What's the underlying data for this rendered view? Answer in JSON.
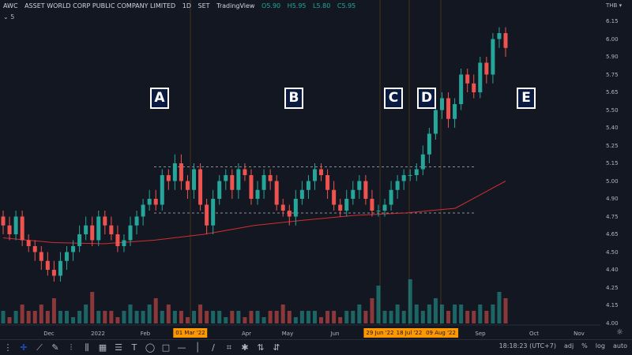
{
  "header": {
    "symbol": "AWC",
    "name": "ASSET WORLD CORP PUBLIC COMPANY LIMITED",
    "interval": "1D",
    "exchange": "SET",
    "source": "TradingView",
    "open": "O5.90",
    "high": "H5.95",
    "low": "L5.80",
    "close": "C5.95",
    "collapse": "5"
  },
  "price_axis": {
    "currency": "THB",
    "labels": [
      "6.15",
      "6.00",
      "5.90",
      "5.75",
      "5.65",
      "5.50",
      "5.40",
      "5.25",
      "5.15",
      "5.00",
      "4.90",
      "4.75",
      "4.65",
      "4.50",
      "4.40",
      "4.25",
      "4.15",
      "4.00"
    ]
  },
  "time_axis": {
    "labels": [
      "Dec",
      "2022",
      "Feb",
      "Apr",
      "May",
      "Jun",
      "Sep",
      "Oct",
      "Nov"
    ],
    "highlights": [
      "01 Mar '22",
      "29 Jun '22",
      "18 Jul '22",
      "09 Aug '22"
    ]
  },
  "annotations": [
    "A",
    "B",
    "C",
    "D",
    "E"
  ],
  "colors": {
    "up": "#26a69a",
    "down": "#ef5350",
    "ma": "#d32f2f",
    "highlight": "#ff9800",
    "background": "#131722"
  },
  "chart_data": {
    "type": "candlestick",
    "closes": [
      4.7,
      4.65,
      4.75,
      4.6,
      4.55,
      4.5,
      4.45,
      4.4,
      4.35,
      4.45,
      4.5,
      4.55,
      4.65,
      4.7,
      4.6,
      4.75,
      4.7,
      4.65,
      4.55,
      4.6,
      4.7,
      4.75,
      4.85,
      4.9,
      4.85,
      5.05,
      5.0,
      5.15,
      5.0,
      4.95,
      5.1,
      4.85,
      4.7,
      4.9,
      5.0,
      5.05,
      4.95,
      5.1,
      5.05,
      4.9,
      4.95,
      5.05,
      5.0,
      4.85,
      4.8,
      4.75,
      4.9,
      4.95,
      5.0,
      5.1,
      5.05,
      4.95,
      4.85,
      4.8,
      4.9,
      4.95,
      5.0,
      4.9,
      4.8,
      4.8,
      4.85,
      4.95,
      5.0,
      5.05,
      5.05,
      5.1,
      5.2,
      5.35,
      5.5,
      5.6,
      5.45,
      5.55,
      5.75,
      5.7,
      5.65,
      5.85,
      5.75,
      6.0,
      6.05,
      5.95
    ],
    "volumes": [
      2,
      1,
      2,
      3,
      2,
      2,
      3,
      2,
      4,
      2,
      2,
      1,
      2,
      3,
      5,
      2,
      2,
      2,
      1,
      2,
      3,
      2,
      2,
      3,
      4,
      2,
      3,
      2,
      2,
      1,
      2,
      3,
      2,
      2,
      2,
      1,
      2,
      2,
      1,
      2,
      2,
      1,
      2,
      2,
      3,
      2,
      1,
      2,
      2,
      2,
      1,
      2,
      2,
      1,
      2,
      2,
      3,
      2,
      4,
      6,
      2,
      2,
      3,
      2,
      7,
      3,
      2,
      3,
      4,
      3,
      2,
      3,
      3,
      2,
      2,
      3,
      2,
      3,
      5,
      4
    ],
    "ma_line": [
      4.62,
      4.58,
      4.57,
      4.6,
      4.65,
      4.7,
      4.73,
      4.76,
      4.78,
      4.82,
      5.0
    ],
    "resistance": 5.12,
    "support": 4.78
  }
}
